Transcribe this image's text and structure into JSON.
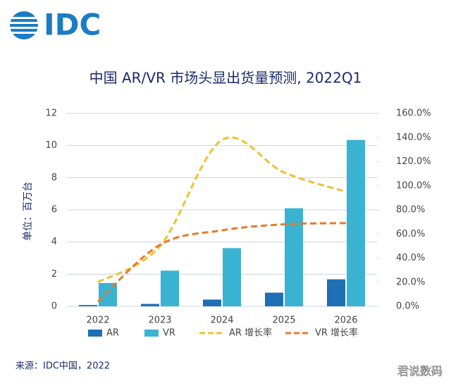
{
  "logo": "IDC",
  "source": "来源：IDC中国，2022",
  "watermark": "君说数码",
  "chart_data": {
    "type": "bar-line",
    "title": "中国 AR/VR 市场头显出货量预测, 2022Q1",
    "y_label": "单位：百万台",
    "categories": [
      "2022",
      "2023",
      "2024",
      "2025",
      "2026"
    ],
    "series": [
      {
        "name": "AR",
        "type": "bar",
        "color": "#1f6fb5",
        "values": [
          0.08,
          0.15,
          0.42,
          0.85,
          1.68
        ]
      },
      {
        "name": "VR",
        "type": "bar",
        "color": "#3ab3d3",
        "values": [
          1.45,
          2.22,
          3.62,
          6.1,
          10.35
        ]
      },
      {
        "name": "AR 增长率",
        "type": "line",
        "axis": "y2",
        "color": "#f0c030",
        "values": [
          20,
          50,
          138,
          111,
          95
        ]
      },
      {
        "name": "VR 增长率",
        "type": "line",
        "axis": "y2",
        "color": "#e87a2a",
        "values": [
          4,
          51,
          63,
          68,
          69
        ]
      }
    ],
    "ylim": [
      0,
      12
    ],
    "yticks": [
      0,
      2,
      4,
      6,
      8,
      10,
      12
    ],
    "y2lim": [
      0,
      160
    ],
    "y2ticks": [
      {
        "value": 0,
        "label": "0.0%"
      },
      {
        "value": 20,
        "label": "20.0%"
      },
      {
        "value": 40,
        "label": "40.0%"
      },
      {
        "value": 60,
        "label": "60.0%"
      },
      {
        "value": 80,
        "label": "80.0%"
      },
      {
        "value": 100,
        "label": "100.0%"
      },
      {
        "value": 120,
        "label": "120.0%"
      },
      {
        "value": 140,
        "label": "140.0%"
      },
      {
        "value": 160,
        "label": "160.0%"
      }
    ],
    "grid": true,
    "legend": "bottom"
  }
}
